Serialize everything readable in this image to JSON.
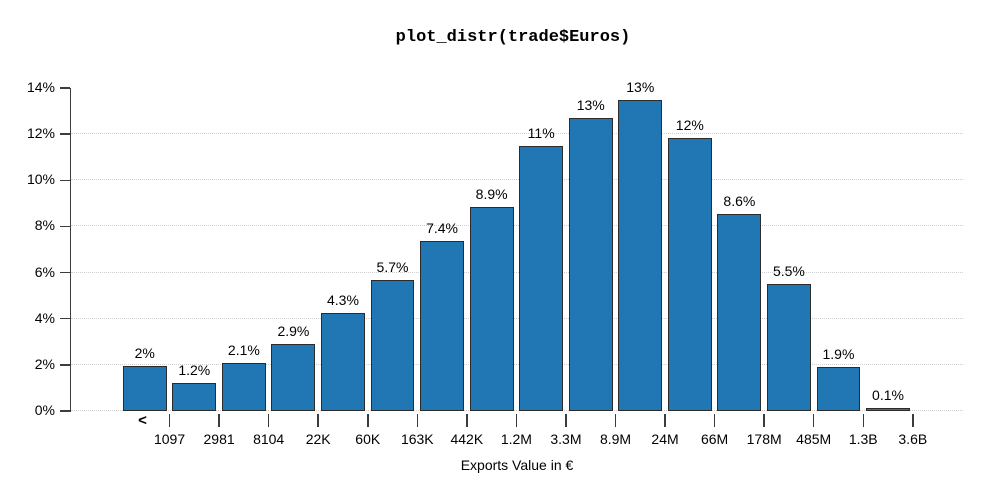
{
  "chart_data": {
    "type": "bar",
    "title": "plot_distr(trade$Euros)",
    "xlabel": "Exports Value in €",
    "ylabel": "",
    "ylim": [
      0,
      14
    ],
    "y_tick_labels": [
      "0%",
      "2%",
      "4%",
      "6%",
      "8%",
      "10%",
      "12%",
      "14%"
    ],
    "first_bin_marker": "<",
    "categories": [
      "1097",
      "2981",
      "8104",
      "22K",
      "60K",
      "163K",
      "442K",
      "1.2M",
      "3.3M",
      "8.9M",
      "24M",
      "66M",
      "178M",
      "485M",
      "1.3B",
      "3.6B"
    ],
    "bar_labels": [
      "2%",
      "1.2%",
      "2.1%",
      "2.9%",
      "4.3%",
      "5.7%",
      "7.4%",
      "8.9%",
      "11%",
      "13%",
      "13%",
      "12%",
      "8.6%",
      "5.5%",
      "1.9%",
      "0.1%"
    ],
    "values": [
      1.95,
      1.2,
      2.1,
      2.9,
      4.25,
      5.7,
      7.35,
      8.85,
      11.5,
      12.7,
      13.5,
      11.85,
      8.55,
      5.5,
      1.9,
      0.15
    ],
    "grid": "horizontal dotted lines every 2% from 0% to 12%",
    "legend": "none",
    "colors": {
      "bar_fill": "#2176b4",
      "bar_border": "#2b2b2b",
      "grid_line": "#cfcfcf",
      "axis": "#3c3c3c",
      "text": "#000000",
      "background": "#ffffff"
    }
  }
}
